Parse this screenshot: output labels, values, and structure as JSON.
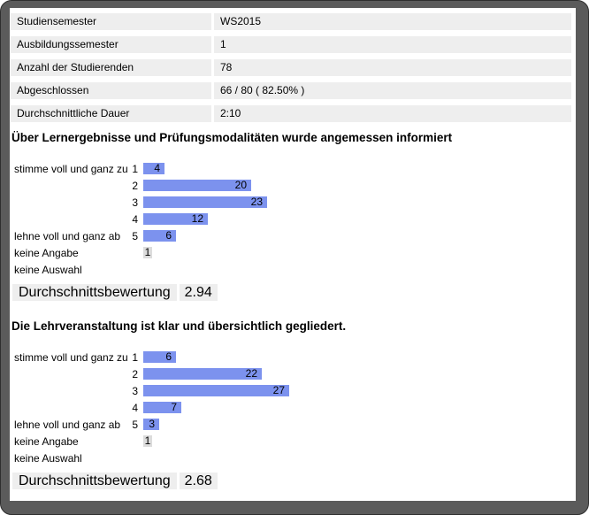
{
  "colors": {
    "frame": "#5b5b5b",
    "row_background": "#eeeeee",
    "bar_blue": "#7c92ee",
    "bar_gray": "#dcdcdc"
  },
  "info_table": {
    "rows": [
      {
        "label": "Studiensemester",
        "value": "WS2015"
      },
      {
        "label": "Ausbildungssemester",
        "value": "1"
      },
      {
        "label": "Anzahl der Studierenden",
        "value": "78"
      },
      {
        "label": "Abgeschlossen",
        "value": "66 / 80 ( 82.50% )"
      },
      {
        "label": "Durchschnittliche Dauer",
        "value": "2:10"
      }
    ]
  },
  "charts": [
    {
      "title": "Über Lernergebnisse und Prüfungsmodalitäten wurde angemessen informiert",
      "rows": [
        {
          "label": "stimme voll und ganz zu",
          "scale": "1",
          "value": 4,
          "bar": "blue"
        },
        {
          "label": "",
          "scale": "2",
          "value": 20,
          "bar": "blue"
        },
        {
          "label": "",
          "scale": "3",
          "value": 23,
          "bar": "blue"
        },
        {
          "label": "",
          "scale": "4",
          "value": 12,
          "bar": "blue"
        },
        {
          "label": "lehne voll und ganz ab",
          "scale": "5",
          "value": 6,
          "bar": "blue"
        },
        {
          "label": "keine Angabe",
          "scale": "",
          "value": 1,
          "bar": "gray"
        },
        {
          "label": "keine Auswahl",
          "scale": "",
          "value": null,
          "bar": "none"
        }
      ],
      "average_label": "Durchschnittsbewertung",
      "average_value": "2.94"
    },
    {
      "title": "Die Lehrveranstaltung ist klar und übersichtlich gegliedert.",
      "rows": [
        {
          "label": "stimme voll und ganz zu",
          "scale": "1",
          "value": 6,
          "bar": "blue"
        },
        {
          "label": "",
          "scale": "2",
          "value": 22,
          "bar": "blue"
        },
        {
          "label": "",
          "scale": "3",
          "value": 27,
          "bar": "blue"
        },
        {
          "label": "",
          "scale": "4",
          "value": 7,
          "bar": "blue"
        },
        {
          "label": "lehne voll und ganz ab",
          "scale": "5",
          "value": 3,
          "bar": "blue"
        },
        {
          "label": "keine Angabe",
          "scale": "",
          "value": 1,
          "bar": "gray"
        },
        {
          "label": "keine Auswahl",
          "scale": "",
          "value": null,
          "bar": "none"
        }
      ],
      "average_label": "Durchschnittsbewertung",
      "average_value": "2.68"
    }
  ],
  "chart_data": [
    {
      "type": "bar",
      "orientation": "horizontal",
      "title": "Über Lernergebnisse und Prüfungsmodalitäten wurde angemessen informiert",
      "categories": [
        "1 stimme voll und ganz zu",
        "2",
        "3",
        "4",
        "5 lehne voll und ganz ab",
        "keine Angabe",
        "keine Auswahl"
      ],
      "values": [
        4,
        20,
        23,
        12,
        6,
        1,
        0
      ],
      "xlabel": "",
      "ylabel": "",
      "xlim": [
        0,
        27
      ],
      "grid": false,
      "legend": false,
      "annotations": {
        "Durchschnittsbewertung": 2.94
      }
    },
    {
      "type": "bar",
      "orientation": "horizontal",
      "title": "Die Lehrveranstaltung ist klar und übersichtlich gegliedert.",
      "categories": [
        "1 stimme voll und ganz zu",
        "2",
        "3",
        "4",
        "5 lehne voll und ganz ab",
        "keine Angabe",
        "keine Auswahl"
      ],
      "values": [
        6,
        22,
        27,
        7,
        3,
        1,
        0
      ],
      "xlabel": "",
      "ylabel": "",
      "xlim": [
        0,
        27
      ],
      "grid": false,
      "legend": false,
      "annotations": {
        "Durchschnittsbewertung": 2.68
      }
    }
  ]
}
